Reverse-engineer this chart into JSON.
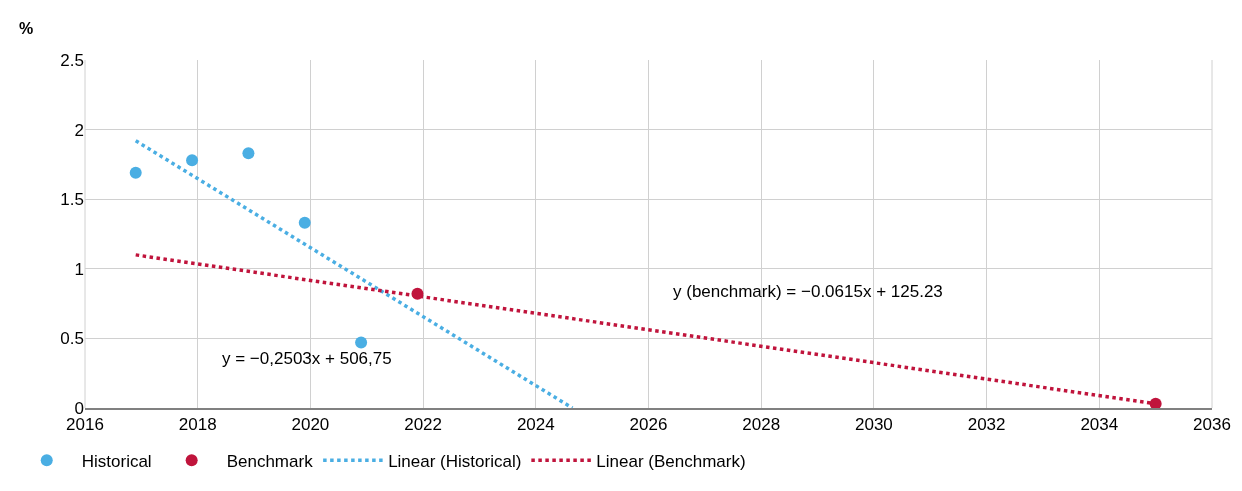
{
  "chart_data": {
    "type": "scatter",
    "ylabel": "%",
    "xlim": [
      2016,
      2036
    ],
    "xticks": [
      2016,
      2018,
      2020,
      2022,
      2024,
      2026,
      2028,
      2030,
      2032,
      2034,
      2036
    ],
    "ylim": [
      0,
      2.5
    ],
    "yticks": [
      0,
      0.5,
      1,
      1.5,
      2,
      2.5
    ],
    "grid": true,
    "legend": "bottom",
    "marker": "circle",
    "series": [
      {
        "name": "Historical",
        "color": "#4aaee3",
        "x": [
          2016.9,
          2017.9,
          2018.9,
          2019.9,
          2020.9
        ],
        "values": [
          1.69,
          1.78,
          1.83,
          1.33,
          0.47
        ]
      },
      {
        "name": "Benchmark",
        "color": "#c0143c",
        "x": [
          2021.9,
          2035
        ],
        "values": [
          0.82,
          0.03
        ]
      },
      {
        "name": "Linear (Historical)",
        "type": "line",
        "marker": "none",
        "line_style": "dotted",
        "color": "#4aaee3",
        "x": [
          2016.9,
          2024.65
        ],
        "values": [
          1.92,
          0
        ]
      },
      {
        "name": "Linear (Benchmark)",
        "type": "line",
        "marker": "none",
        "line_style": "dotted",
        "color": "#c0143c",
        "x": [
          2016.9,
          2035
        ],
        "values": [
          1.1,
          0.03
        ]
      }
    ],
    "annotations": [
      "y = −0,2503x + 506,75",
      "y (benchmark) = −0.0615x + 125.23"
    ]
  }
}
